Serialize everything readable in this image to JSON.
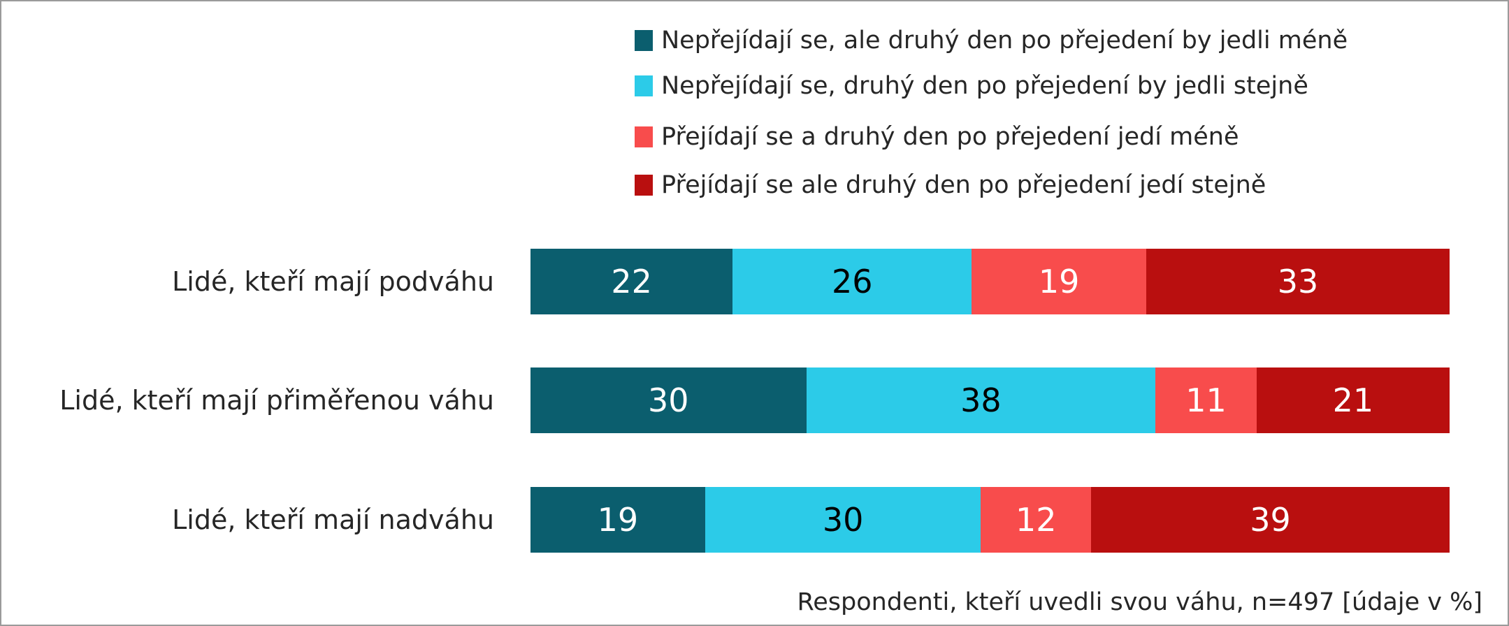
{
  "chart_data": {
    "type": "bar",
    "orientation": "horizontal",
    "stacked": true,
    "categories": [
      "Lidé, kteří mají podváhu",
      "Lidé, kteří mají přiměřenou váhu",
      "Lidé, kteří mají nadváhu"
    ],
    "series": [
      {
        "name": "Nepřejídají se, ale druhý den po přejedení by jedli méně",
        "color": "#0b5e6e",
        "label_color": "#ffffff",
        "values": [
          22,
          30,
          19
        ]
      },
      {
        "name": "Nepřejídají se, druhý den po přejedení by jedli stejně",
        "color": "#2ccbe8",
        "label_color": "#000000",
        "values": [
          26,
          38,
          30
        ]
      },
      {
        "name": "Přejídají se a druhý den po přejedení jedí méně",
        "color": "#f84c4c",
        "label_color": "#ffffff",
        "values": [
          19,
          11,
          12
        ]
      },
      {
        "name": "Přejídají se ale druhý den po přejedení jedí stejně",
        "color": "#b90f0f",
        "label_color": "#ffffff",
        "values": [
          33,
          21,
          39
        ]
      }
    ],
    "xlim": [
      0,
      100
    ],
    "legend_position": "top-right",
    "grid": false,
    "footnote": "Respondenti, kteří uvedli svou váhu, n=497 [údaje v %]"
  }
}
